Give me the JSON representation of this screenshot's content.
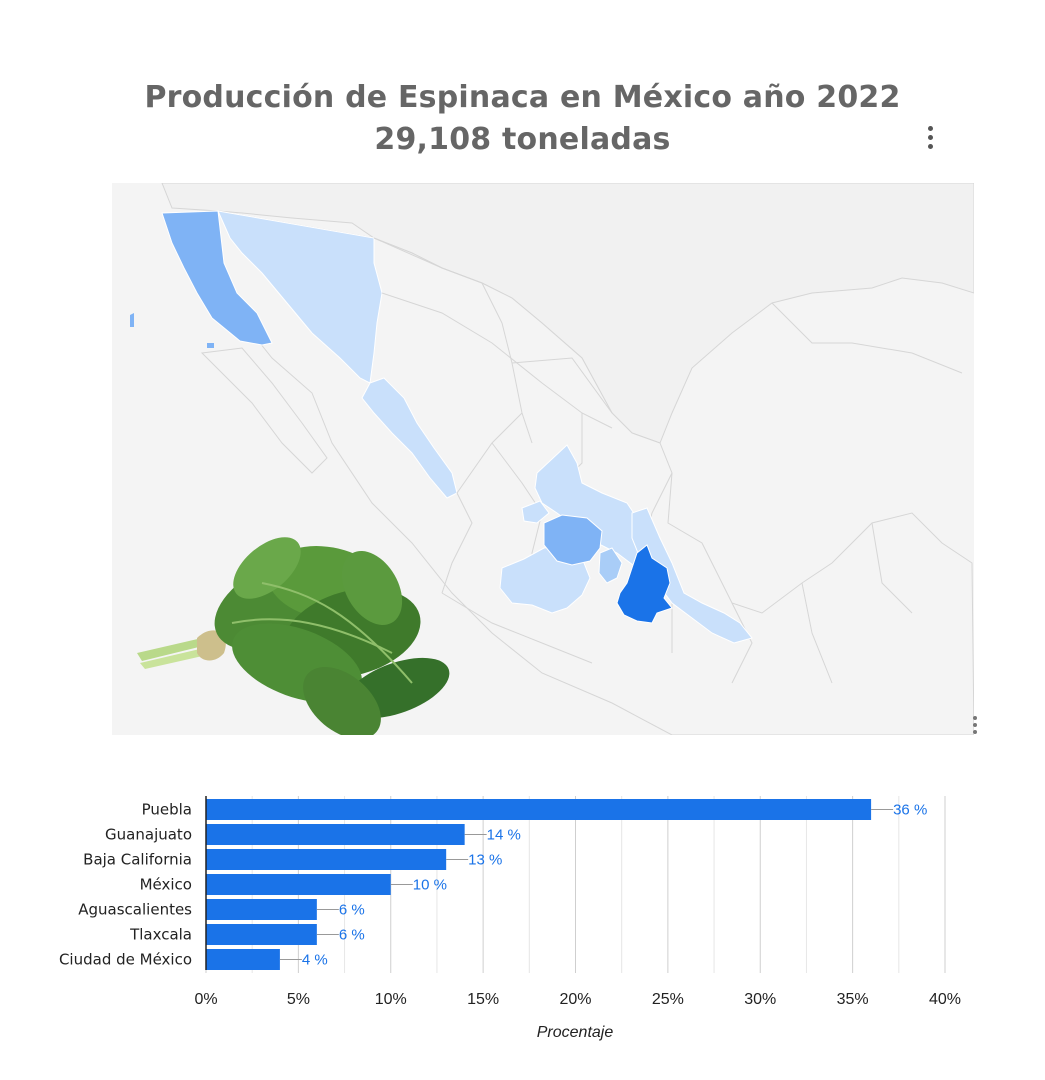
{
  "title_line1": "Producción de Espinaca en México año 2022",
  "title_line2": "29,108 toneladas",
  "colors": {
    "bar": "#1a73e8",
    "map_max": "#1a73e8",
    "map_mid": "#7fb3f5",
    "map_low": "#c9e0fb",
    "map_base": "#f4f4f4",
    "map_border": "#d6d6d6"
  },
  "chart_data": {
    "type": "bar",
    "orientation": "horizontal",
    "categories": [
      "Puebla",
      "Guanajuato",
      "Baja California",
      "México",
      "Aguascalientes",
      "Tlaxcala",
      "Ciudad de México"
    ],
    "values": [
      36,
      14,
      13,
      10,
      6,
      6,
      4
    ],
    "data_labels": [
      "36 %",
      "14 %",
      "13 %",
      "10 %",
      "6 %",
      "6 %",
      "4 %"
    ],
    "xlabel": "Procentaje",
    "xlim": [
      0,
      40
    ],
    "xticks": [
      "0%",
      "5%",
      "10%",
      "15%",
      "20%",
      "25%",
      "30%",
      "35%",
      "40%"
    ],
    "grid": true
  },
  "map_legend": {
    "highlighted_states": [
      "Puebla",
      "Guanajuato",
      "Baja California",
      "México",
      "Aguascalientes",
      "Tlaxcala",
      "Ciudad de México",
      "Sonora",
      "Sinaloa",
      "San Luis Potosí",
      "Querétaro",
      "Hidalgo",
      "Veracruz",
      "Jalisco",
      "Michoacán"
    ]
  },
  "image": {
    "icon": "spinach-bunch-icon"
  }
}
